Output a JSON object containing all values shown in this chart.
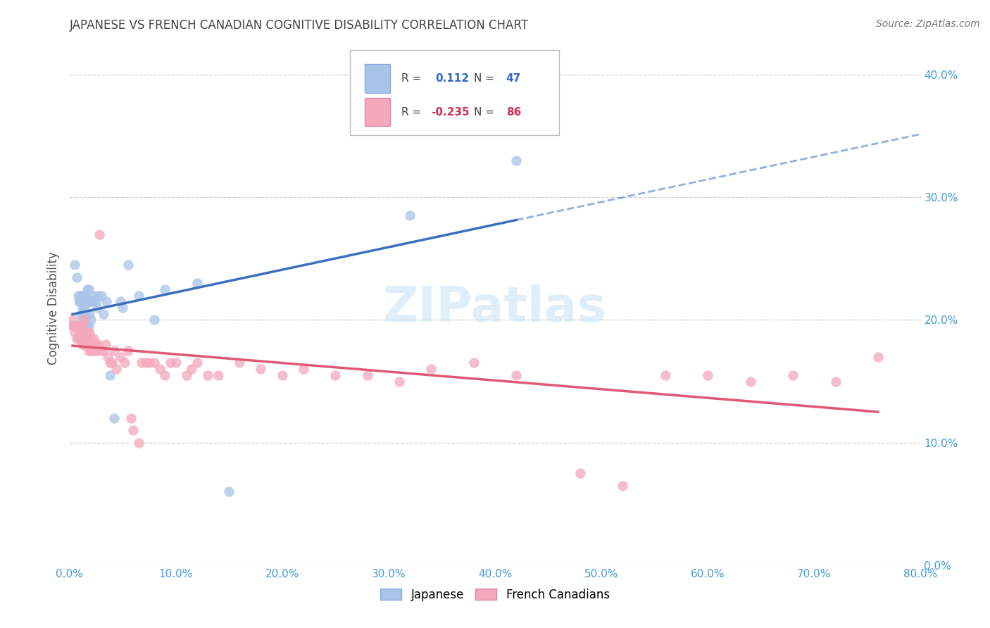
{
  "title": "JAPANESE VS FRENCH CANADIAN COGNITIVE DISABILITY CORRELATION CHART",
  "source": "Source: ZipAtlas.com",
  "ylabel": "Cognitive Disability",
  "R_japanese": 0.112,
  "N_japanese": 47,
  "R_french": -0.235,
  "N_french": 86,
  "background_color": "#ffffff",
  "grid_color": "#cccccc",
  "japanese_color": "#a8c4e8",
  "french_color": "#f4a8bb",
  "japanese_line_color": "#3a6fbc",
  "french_line_color": "#e05878",
  "title_color": "#444444",
  "axis_color": "#4499dd",
  "watermark_color": "#cce4f5",
  "japanese_x": [
    0.003,
    0.005,
    0.007,
    0.008,
    0.009,
    0.01,
    0.01,
    0.011,
    0.012,
    0.012,
    0.013,
    0.013,
    0.014,
    0.014,
    0.015,
    0.015,
    0.016,
    0.016,
    0.017,
    0.017,
    0.018,
    0.018,
    0.019,
    0.019,
    0.02,
    0.02,
    0.021,
    0.022,
    0.023,
    0.025,
    0.026,
    0.027,
    0.03,
    0.032,
    0.035,
    0.038,
    0.042,
    0.048,
    0.05,
    0.055,
    0.065,
    0.08,
    0.09,
    0.12,
    0.15,
    0.32,
    0.42
  ],
  "japanese_y": [
    0.195,
    0.245,
    0.235,
    0.22,
    0.215,
    0.215,
    0.22,
    0.205,
    0.21,
    0.22,
    0.2,
    0.205,
    0.21,
    0.22,
    0.205,
    0.22,
    0.195,
    0.215,
    0.225,
    0.215,
    0.195,
    0.225,
    0.205,
    0.215,
    0.2,
    0.215,
    0.215,
    0.215,
    0.22,
    0.215,
    0.21,
    0.22,
    0.22,
    0.205,
    0.215,
    0.155,
    0.12,
    0.215,
    0.21,
    0.245,
    0.22,
    0.2,
    0.225,
    0.23,
    0.06,
    0.285,
    0.33
  ],
  "french_x": [
    0.003,
    0.004,
    0.005,
    0.006,
    0.006,
    0.007,
    0.007,
    0.008,
    0.008,
    0.009,
    0.009,
    0.01,
    0.01,
    0.011,
    0.011,
    0.012,
    0.012,
    0.013,
    0.013,
    0.014,
    0.014,
    0.015,
    0.015,
    0.016,
    0.016,
    0.017,
    0.017,
    0.018,
    0.018,
    0.019,
    0.019,
    0.02,
    0.02,
    0.021,
    0.022,
    0.023,
    0.024,
    0.025,
    0.026,
    0.027,
    0.028,
    0.03,
    0.032,
    0.034,
    0.036,
    0.038,
    0.04,
    0.042,
    0.044,
    0.048,
    0.052,
    0.055,
    0.058,
    0.06,
    0.065,
    0.068,
    0.072,
    0.075,
    0.08,
    0.085,
    0.09,
    0.095,
    0.1,
    0.11,
    0.115,
    0.12,
    0.13,
    0.14,
    0.16,
    0.18,
    0.2,
    0.22,
    0.25,
    0.28,
    0.31,
    0.34,
    0.38,
    0.42,
    0.48,
    0.52,
    0.56,
    0.6,
    0.64,
    0.68,
    0.72,
    0.76
  ],
  "french_y": [
    0.195,
    0.2,
    0.19,
    0.195,
    0.195,
    0.185,
    0.195,
    0.185,
    0.195,
    0.185,
    0.195,
    0.19,
    0.195,
    0.185,
    0.185,
    0.18,
    0.195,
    0.18,
    0.19,
    0.185,
    0.2,
    0.19,
    0.185,
    0.19,
    0.185,
    0.18,
    0.19,
    0.175,
    0.185,
    0.18,
    0.19,
    0.175,
    0.185,
    0.18,
    0.175,
    0.185,
    0.175,
    0.18,
    0.175,
    0.18,
    0.27,
    0.175,
    0.175,
    0.18,
    0.17,
    0.165,
    0.165,
    0.175,
    0.16,
    0.17,
    0.165,
    0.175,
    0.12,
    0.11,
    0.1,
    0.165,
    0.165,
    0.165,
    0.165,
    0.16,
    0.155,
    0.165,
    0.165,
    0.155,
    0.16,
    0.165,
    0.155,
    0.155,
    0.165,
    0.16,
    0.155,
    0.16,
    0.155,
    0.155,
    0.15,
    0.16,
    0.165,
    0.155,
    0.075,
    0.065,
    0.155,
    0.155,
    0.15,
    0.155,
    0.15,
    0.17
  ],
  "xlim": [
    0.0,
    0.8
  ],
  "ylim": [
    0.0,
    0.42
  ],
  "xticks": [
    0.0,
    0.1,
    0.2,
    0.3,
    0.4,
    0.5,
    0.6,
    0.7,
    0.8
  ],
  "yticks": [
    0.0,
    0.1,
    0.2,
    0.3,
    0.4
  ]
}
